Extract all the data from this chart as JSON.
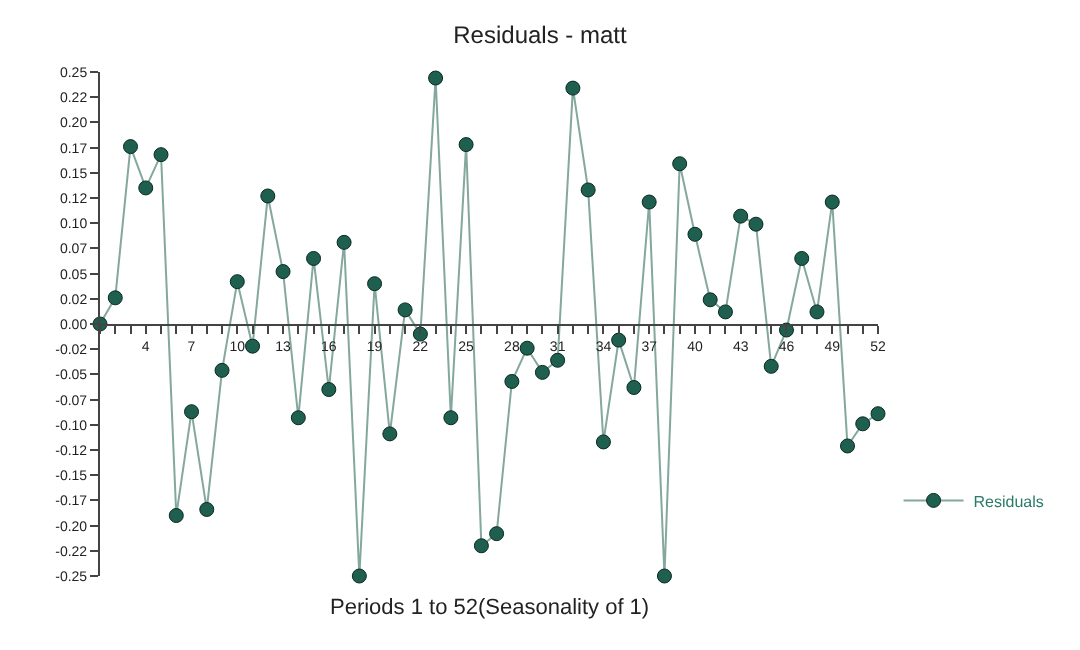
{
  "chart_data": {
    "type": "line",
    "title": "Residuals - matt",
    "xlabel": "Periods 1 to 52(Seasonality of 1)",
    "x": [
      1,
      2,
      3,
      4,
      5,
      6,
      7,
      8,
      9,
      10,
      11,
      12,
      13,
      14,
      15,
      16,
      17,
      18,
      19,
      20,
      21,
      22,
      23,
      24,
      25,
      26,
      27,
      28,
      29,
      30,
      31,
      32,
      33,
      34,
      35,
      36,
      37,
      38,
      39,
      40,
      41,
      42,
      43,
      44,
      45,
      46,
      47,
      48,
      49,
      50,
      51,
      52
    ],
    "series": [
      {
        "name": "Residuals",
        "color": "#1f5f4f",
        "values": [
          0.0,
          0.026,
          0.176,
          0.135,
          0.168,
          -0.19,
          -0.087,
          -0.184,
          -0.046,
          0.042,
          -0.022,
          0.127,
          0.052,
          -0.093,
          0.065,
          -0.065,
          0.081,
          -0.25,
          0.04,
          -0.109,
          0.014,
          -0.01,
          0.244,
          -0.093,
          0.178,
          -0.22,
          -0.208,
          -0.057,
          -0.024,
          -0.048,
          -0.036,
          0.234,
          0.133,
          -0.117,
          -0.016,
          -0.063,
          0.121,
          -0.25,
          0.159,
          0.089,
          0.024,
          0.012,
          0.107,
          0.099,
          -0.042,
          -0.006,
          0.065,
          0.012,
          0.121,
          -0.121,
          -0.099,
          -0.089
        ]
      }
    ],
    "xlim": [
      1,
      52
    ],
    "xticks": [
      {
        "value": 1,
        "label": null
      },
      {
        "value": 2,
        "label": null
      },
      {
        "value": 3,
        "label": null
      },
      4,
      {
        "value": 5,
        "label": null
      },
      {
        "value": 6,
        "label": null
      },
      7,
      {
        "value": 8,
        "label": null
      },
      {
        "value": 9,
        "label": null
      },
      10,
      {
        "value": 11,
        "label": null
      },
      {
        "value": 12,
        "label": null
      },
      13,
      {
        "value": 14,
        "label": null
      },
      {
        "value": 15,
        "label": null
      },
      16,
      {
        "value": 17,
        "label": null
      },
      {
        "value": 18,
        "label": null
      },
      19,
      {
        "value": 20,
        "label": null
      },
      {
        "value": 21,
        "label": null
      },
      22,
      {
        "value": 23,
        "label": null
      },
      {
        "value": 24,
        "label": null
      },
      25,
      {
        "value": 26,
        "label": null
      },
      {
        "value": 27,
        "label": null
      },
      28,
      {
        "value": 29,
        "label": null
      },
      {
        "value": 30,
        "label": null
      },
      31,
      {
        "value": 32,
        "label": null
      },
      {
        "value": 33,
        "label": null
      },
      34,
      {
        "value": 35,
        "label": null
      },
      {
        "value": 36,
        "label": null
      },
      37,
      {
        "value": 38,
        "label": null
      },
      {
        "value": 39,
        "label": null
      },
      40,
      {
        "value": 41,
        "label": null
      },
      {
        "value": 42,
        "label": null
      },
      43,
      {
        "value": 44,
        "label": null
      },
      {
        "value": 45,
        "label": null
      },
      46,
      {
        "value": 47,
        "label": null
      },
      {
        "value": 48,
        "label": null
      },
      49,
      {
        "value": 50,
        "label": null
      },
      {
        "value": 51,
        "label": null
      },
      52
    ],
    "ylim": [
      -0.25,
      0.25
    ],
    "yticks": [
      {
        "value": -0.25,
        "label": "-0.25"
      },
      {
        "value": -0.225,
        "label": "-0.22"
      },
      {
        "value": -0.2,
        "label": "-0.20"
      },
      {
        "value": -0.175,
        "label": "-0.17"
      },
      {
        "value": -0.15,
        "label": "-0.15"
      },
      {
        "value": -0.125,
        "label": "-0.12"
      },
      {
        "value": -0.1,
        "label": "-0.10"
      },
      {
        "value": -0.075,
        "label": "-0.07"
      },
      {
        "value": -0.05,
        "label": "-0.05"
      },
      {
        "value": -0.025,
        "label": "-0.02"
      },
      {
        "value": 0,
        "label": "0.00"
      },
      {
        "value": 0.025,
        "label": "0.02"
      },
      {
        "value": 0.05,
        "label": "0.05"
      },
      {
        "value": 0.075,
        "label": "0.07"
      },
      {
        "value": 0.1,
        "label": "0.10"
      },
      {
        "value": 0.125,
        "label": "0.12"
      },
      {
        "value": 0.15,
        "label": "0.15"
      },
      {
        "value": 0.175,
        "label": "0.17"
      },
      {
        "value": 0.2,
        "label": "0.20"
      },
      {
        "value": 0.225,
        "label": "0.22"
      },
      {
        "value": 0.25,
        "label": "0.25"
      }
    ],
    "legend": "right",
    "marker": "circle",
    "line_style": "solid"
  }
}
